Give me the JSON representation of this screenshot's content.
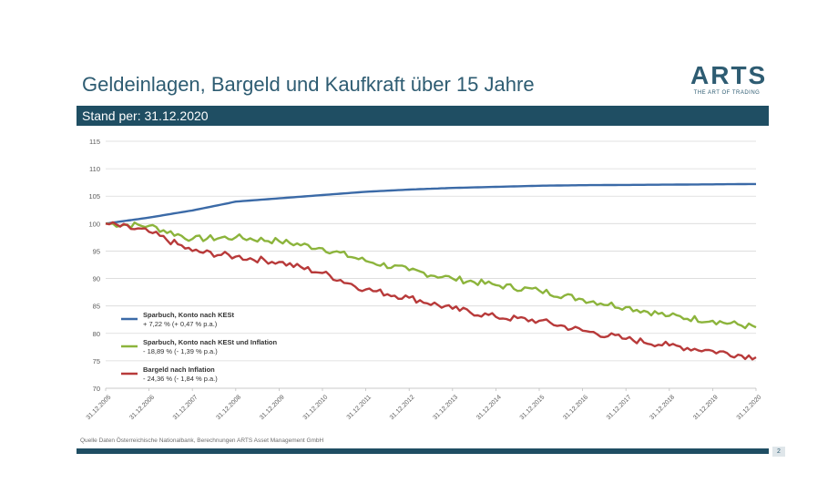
{
  "slide": {
    "title": "Geldeinlagen, Bargeld und Kaufkraft über 15 Jahre",
    "subtitle_band": "Stand per: 31.12.2020",
    "source": "Quelle Daten Österreichische Nationalbank, Berechnungen ARTS Asset Management GmbH",
    "page_number": "2"
  },
  "logo": {
    "word": "ARTS",
    "tagline": "THE ART OF TRADING"
  },
  "colors": {
    "brand": "#2e5c72",
    "band": "#1f4e63",
    "series_blue": "#3b6aa7",
    "series_green": "#8cb43c",
    "series_red": "#b83a3a"
  },
  "chart_data": {
    "type": "line",
    "title": "",
    "xlabel": "",
    "ylabel": "",
    "ylim": [
      70,
      115
    ],
    "yticks": [
      70,
      75,
      80,
      85,
      90,
      95,
      100,
      105,
      110,
      115
    ],
    "grid": true,
    "legend_placement": "lower-left",
    "x": [
      "31.12.2005",
      "31.12.2006",
      "31.12.2007",
      "31.12.2008",
      "31.12.2009",
      "31.12.2010",
      "31.12.2011",
      "31.12.2012",
      "31.12.2013",
      "31.12.2014",
      "31.12.2015",
      "31.12.2016",
      "31.12.2017",
      "31.12.2018",
      "31.12.2019",
      "31.12.2020"
    ],
    "series": [
      {
        "name": "Sparbuch, Konto nach KESt",
        "legend_sub": "+ 7,22 % (+ 0,47 % p.a.)",
        "color": "#3b6aa7",
        "values": [
          100,
          101.1,
          102.4,
          104.0,
          104.6,
          105.2,
          105.8,
          106.2,
          106.5,
          106.7,
          106.9,
          107.0,
          107.05,
          107.1,
          107.15,
          107.22
        ]
      },
      {
        "name": "Sparbuch, Konto nach KESt und Inflation",
        "legend_sub": "- 18,89 % (- 1,39 % p.a.)",
        "color": "#8cb43c",
        "values": [
          100,
          99.6,
          97.2,
          97.5,
          96.8,
          95.5,
          93.2,
          91.5,
          90.0,
          88.8,
          87.8,
          86.2,
          84.8,
          83.2,
          82.3,
          81.11
        ]
      },
      {
        "name": "Bargeld nach Inflation",
        "legend_sub": "- 24,36 % (- 1,84 % p.a.)",
        "color": "#b83a3a",
        "values": [
          100,
          98.5,
          95.0,
          94.0,
          93.0,
          91.0,
          88.0,
          86.5,
          84.5,
          83.0,
          82.3,
          80.5,
          79.0,
          77.8,
          76.8,
          75.64
        ]
      }
    ]
  }
}
